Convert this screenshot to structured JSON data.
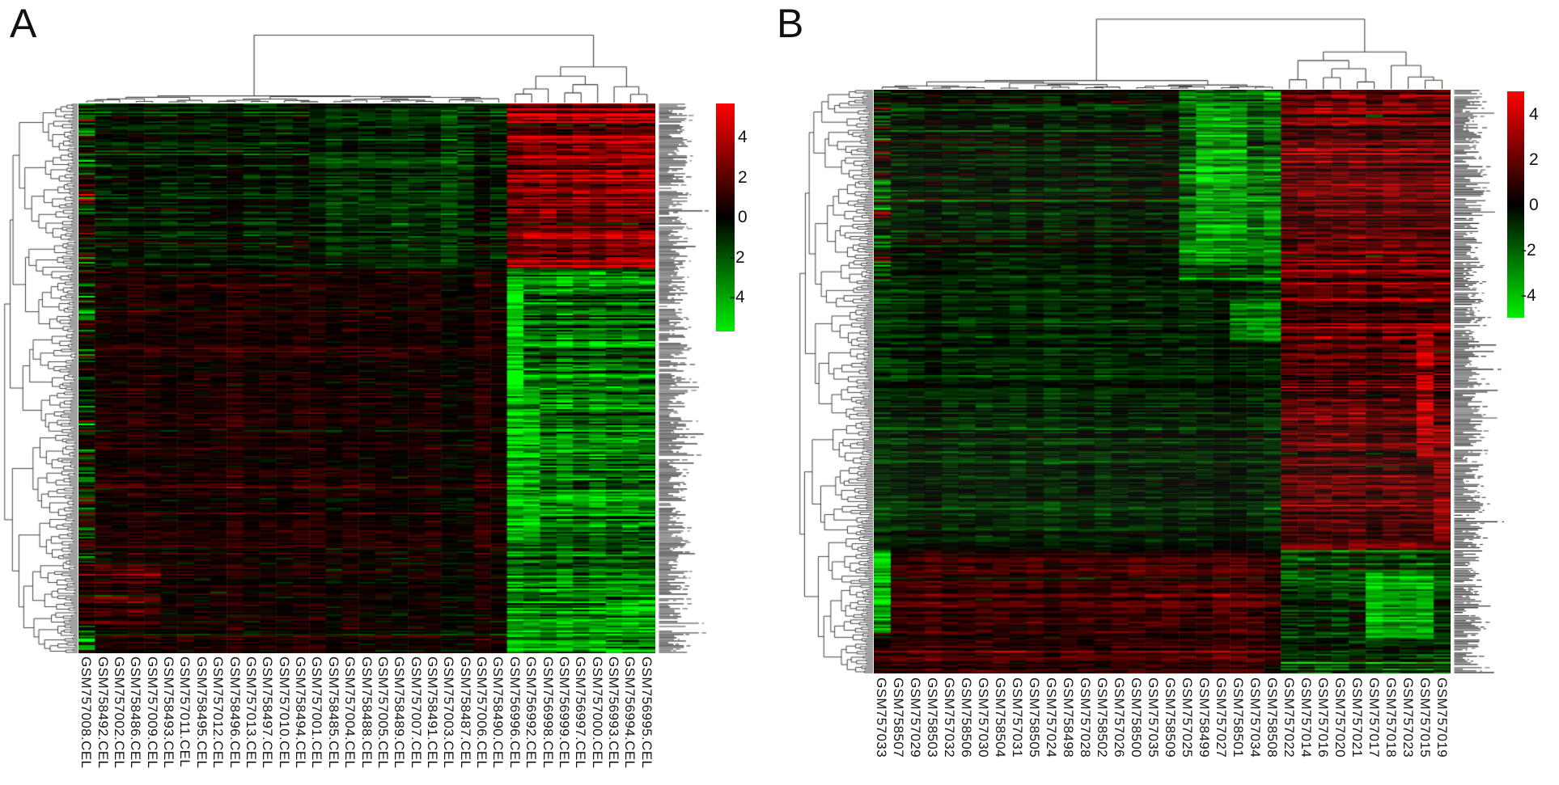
{
  "figure": {
    "background": "#ffffff",
    "dendrogram_color": "#3f3f3f",
    "panels": [
      {
        "letter": "A",
        "row_labels_legible": false,
        "color_key": {
          "tick_labels": [
            "4",
            "2",
            "0",
            "-2",
            "-4"
          ],
          "tick_values": [
            4,
            2,
            0,
            -2,
            -4
          ],
          "top_color": "#ff0000",
          "mid_color": "#000000",
          "bottom_color": "#00ee00"
        }
      },
      {
        "letter": "B",
        "row_labels_legible": false,
        "color_key": {
          "tick_labels": [
            "4",
            "2",
            "0",
            "-2",
            "-4"
          ],
          "tick_values": [
            4,
            2,
            0,
            -2,
            -4
          ],
          "top_color": "#ff0000",
          "mid_color": "#000000",
          "bottom_color": "#00ee00"
        }
      }
    ]
  },
  "chart_data": [
    {
      "type": "heatmap",
      "panel": "A",
      "title": "",
      "columns": [
        "GSM757008.CEL",
        "GSM758492.CEL",
        "GSM757002.CEL",
        "GSM758486.CEL",
        "GSM757009.CEL",
        "GSM758493.CEL",
        "GSM757011.CEL",
        "GSM758495.CEL",
        "GSM757012.CEL",
        "GSM758496.CEL",
        "GSM757013.CEL",
        "GSM758497.CEL",
        "GSM757010.CEL",
        "GSM758494.CEL",
        "GSM757001.CEL",
        "GSM758485.CEL",
        "GSM757004.CEL",
        "GSM758488.CEL",
        "GSM757005.CEL",
        "GSM758489.CEL",
        "GSM757007.CEL",
        "GSM758491.CEL",
        "GSM757003.CEL",
        "GSM758487.CEL",
        "GSM757006.CEL",
        "GSM758490.CEL",
        "GSM756996.CEL",
        "GSM756992.CEL",
        "GSM756998.CEL",
        "GSM756999.CEL",
        "GSM756997.CEL",
        "GSM757000.CEL",
        "GSM756993.CEL",
        "GSM756994.CEL",
        "GSM756995.CEL"
      ],
      "n_cols": 35,
      "column_clusters": {
        "left_size": 26,
        "right_size": 9
      },
      "rows": {
        "count_estimate": 340,
        "labels_legible": false
      },
      "value_scale": {
        "ticks": [
          4,
          2,
          0,
          -2,
          -4
        ],
        "positive_color": "#ff0000",
        "zero_color": "#000000",
        "negative_color": "#00ff00"
      },
      "seed": 1301,
      "blocks": [
        {
          "rows": [
            0,
            0.3
          ],
          "cols": [
            0,
            25
          ],
          "mean": -0.55,
          "row_sd": 0.65,
          "cell_sd": 0.45
        },
        {
          "rows": [
            0,
            0.3
          ],
          "cols": [
            14,
            22
          ],
          "mean": -0.9,
          "row_sd": 0.55,
          "cell_sd": 0.4
        },
        {
          "rows": [
            0,
            0.3
          ],
          "cols": [
            26,
            34
          ],
          "mean": 2.3,
          "row_sd": 1.0,
          "cell_sd": 0.55
        },
        {
          "rows": [
            0.3,
            1
          ],
          "cols": [
            0,
            25
          ],
          "mean": 0.55,
          "row_sd": 0.5,
          "cell_sd": 0.4
        },
        {
          "rows": [
            0.3,
            1
          ],
          "cols": [
            26,
            34
          ],
          "mean": -2.2,
          "row_sd": 0.95,
          "cell_sd": 0.6
        },
        {
          "rows": [
            0,
            1
          ],
          "cols": [
            0,
            0
          ],
          "mean": -0.25,
          "row_sd": 1.5,
          "cell_sd": 0.8
        },
        {
          "rows": [
            0.33,
            0.52
          ],
          "cols": [
            26,
            26
          ],
          "mean": -3.6,
          "row_sd": 0.7,
          "cell_sd": 0.4
        },
        {
          "rows": [
            0.52,
            0.8
          ],
          "cols": [
            26,
            27
          ],
          "mean": -2.8,
          "row_sd": 0.8,
          "cell_sd": 0.5
        },
        {
          "rows": [
            0.84,
            0.95
          ],
          "cols": [
            0,
            4
          ],
          "mean": 1.25,
          "row_sd": 0.8,
          "cell_sd": 0.5
        },
        {
          "rows": [
            0.86,
            1
          ],
          "cols": [
            32,
            34
          ],
          "mean": -3.0,
          "row_sd": 0.8,
          "cell_sd": 0.5
        },
        {
          "rows": [
            0.94,
            1
          ],
          "cols": [
            26,
            31
          ],
          "mean": -2.6,
          "row_sd": 0.7,
          "cell_sd": 0.5
        }
      ]
    },
    {
      "type": "heatmap",
      "panel": "B",
      "title": "",
      "columns": [
        "GSM757033",
        "GSM758507",
        "GSM757029",
        "GSM758503",
        "GSM757032",
        "GSM758506",
        "GSM757030",
        "GSM758504",
        "GSM757031",
        "GSM758505",
        "GSM757024",
        "GSM758498",
        "GSM757028",
        "GSM758502",
        "GSM757026",
        "GSM758500",
        "GSM757035",
        "GSM758509",
        "GSM757025",
        "GSM758499",
        "GSM757027",
        "GSM758501",
        "GSM757034",
        "GSM758508",
        "GSM757022",
        "GSM757014",
        "GSM757016",
        "GSM757020",
        "GSM757021",
        "GSM757017",
        "GSM757018",
        "GSM757023",
        "GSM757015",
        "GSM757019"
      ],
      "n_cols": 34,
      "column_clusters": {
        "left_size": 24,
        "right_size": 10
      },
      "rows": {
        "count_estimate": 360,
        "labels_legible": false
      },
      "value_scale": {
        "ticks": [
          4,
          2,
          0,
          -2,
          -4
        ],
        "positive_color": "#ff0000",
        "zero_color": "#000000",
        "negative_color": "#00ff00"
      },
      "seed": 907,
      "blocks": [
        {
          "rows": [
            0,
            0.33
          ],
          "cols": [
            0,
            23
          ],
          "mean": -0.55,
          "row_sd": 0.6,
          "cell_sd": 0.42
        },
        {
          "rows": [
            0,
            1
          ],
          "cols": [
            0,
            0
          ],
          "mean": -0.3,
          "row_sd": 1.4,
          "cell_sd": 0.8
        },
        {
          "rows": [
            0,
            0.33
          ],
          "cols": [
            18,
            23
          ],
          "mean": -1.9,
          "row_sd": 0.8,
          "cell_sd": 0.5
        },
        {
          "rows": [
            0.02,
            0.3
          ],
          "cols": [
            19,
            21
          ],
          "mean": -3.1,
          "row_sd": 0.7,
          "cell_sd": 0.45
        },
        {
          "rows": [
            0,
            0.33
          ],
          "cols": [
            24,
            33
          ],
          "mean": 1.9,
          "row_sd": 1.0,
          "cell_sd": 0.55
        },
        {
          "rows": [
            0.33,
            0.79
          ],
          "cols": [
            0,
            23
          ],
          "mean": -0.8,
          "row_sd": 0.45,
          "cell_sd": 0.38
        },
        {
          "rows": [
            0.33,
            0.79
          ],
          "cols": [
            24,
            33
          ],
          "mean": 1.5,
          "row_sd": 0.85,
          "cell_sd": 0.55
        },
        {
          "rows": [
            0.36,
            0.43
          ],
          "cols": [
            21,
            23
          ],
          "mean": -2.4,
          "row_sd": 0.6,
          "cell_sd": 0.45
        },
        {
          "rows": [
            0.4,
            0.63
          ],
          "cols": [
            32,
            32
          ],
          "mean": 3.4,
          "row_sd": 0.8,
          "cell_sd": 0.5
        },
        {
          "rows": [
            0.55,
            0.78
          ],
          "cols": [
            33,
            33
          ],
          "mean": 2.4,
          "row_sd": 0.8,
          "cell_sd": 0.5
        },
        {
          "rows": [
            0.79,
            1
          ],
          "cols": [
            0,
            23
          ],
          "mean": 0.95,
          "row_sd": 0.6,
          "cell_sd": 0.45
        },
        {
          "rows": [
            0.79,
            0.93
          ],
          "cols": [
            0,
            0
          ],
          "mean": -3.2,
          "row_sd": 0.8,
          "cell_sd": 0.5
        },
        {
          "rows": [
            0.79,
            1
          ],
          "cols": [
            24,
            33
          ],
          "mean": -1.0,
          "row_sd": 0.9,
          "cell_sd": 0.6
        },
        {
          "rows": [
            0.83,
            0.94
          ],
          "cols": [
            29,
            32
          ],
          "mean": -2.9,
          "row_sd": 0.7,
          "cell_sd": 0.5
        }
      ]
    }
  ]
}
